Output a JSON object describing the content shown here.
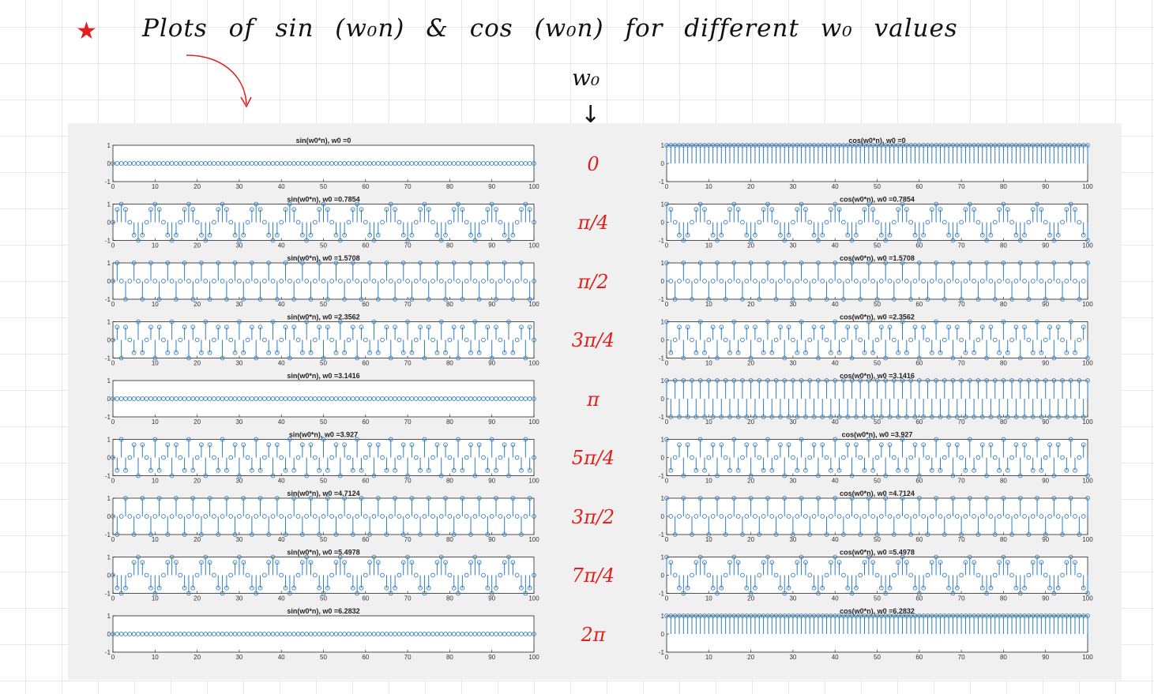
{
  "page": {
    "title_star": "★",
    "title": "Plots of sin (w₀n) & cos (w₀n) for different w₀ values",
    "w0_header": "w₀",
    "down_arrow": "↓"
  },
  "colors": {
    "stem": "#2f7bbf",
    "w0_labels": "#e0201c",
    "title_star": "#e02020",
    "figure_bg": "#f0f0f0"
  },
  "w0_labels": [
    "0",
    "π/4",
    "π/2",
    "3π/4",
    "π",
    "5π/4",
    "3π/2",
    "7π/4",
    "2π"
  ],
  "chart_data": [
    {
      "type": "stem",
      "function": "sin",
      "w0": 0,
      "title": "sin(w0*n),  w0 =0",
      "x_range": [
        0,
        100
      ],
      "ylim": [
        -1,
        1
      ],
      "xticks": [
        0,
        10,
        20,
        30,
        40,
        50,
        60,
        70,
        80,
        90,
        100
      ],
      "yticks": [
        -1,
        0,
        1
      ]
    },
    {
      "type": "stem",
      "function": "sin",
      "w0": 0.7854,
      "title": "sin(w0*n),  w0 =0.7854",
      "x_range": [
        0,
        100
      ],
      "ylim": [
        -1,
        1
      ],
      "xticks": [
        0,
        10,
        20,
        30,
        40,
        50,
        60,
        70,
        80,
        90,
        100
      ],
      "yticks": [
        -1,
        0,
        1
      ]
    },
    {
      "type": "stem",
      "function": "sin",
      "w0": 1.5708,
      "title": "sin(w0*n),  w0 =1.5708",
      "x_range": [
        0,
        100
      ],
      "ylim": [
        -1,
        1
      ],
      "xticks": [
        0,
        10,
        20,
        30,
        40,
        50,
        60,
        70,
        80,
        90,
        100
      ],
      "yticks": [
        -1,
        0,
        1
      ]
    },
    {
      "type": "stem",
      "function": "sin",
      "w0": 2.3562,
      "title": "sin(w0*n),  w0 =2.3562",
      "x_range": [
        0,
        100
      ],
      "ylim": [
        -1,
        1
      ],
      "xticks": [
        0,
        10,
        20,
        30,
        40,
        50,
        60,
        70,
        80,
        90,
        100
      ],
      "yticks": [
        -1,
        0,
        1
      ]
    },
    {
      "type": "stem",
      "function": "sin",
      "w0": 3.1416,
      "title": "sin(w0*n),  w0 =3.1416",
      "x_range": [
        0,
        100
      ],
      "ylim": [
        -1,
        1
      ],
      "xticks": [
        0,
        10,
        20,
        30,
        40,
        50,
        60,
        70,
        80,
        90,
        100
      ],
      "yticks": [
        -1,
        0,
        1
      ]
    },
    {
      "type": "stem",
      "function": "sin",
      "w0": 3.927,
      "title": "sin(w0*n),  w0 =3.927",
      "x_range": [
        0,
        100
      ],
      "ylim": [
        -1,
        1
      ],
      "xticks": [
        0,
        10,
        20,
        30,
        40,
        50,
        60,
        70,
        80,
        90,
        100
      ],
      "yticks": [
        -1,
        0,
        1
      ]
    },
    {
      "type": "stem",
      "function": "sin",
      "w0": 4.7124,
      "title": "sin(w0*n),  w0 =4.7124",
      "x_range": [
        0,
        100
      ],
      "ylim": [
        -1,
        1
      ],
      "xticks": [
        0,
        10,
        20,
        30,
        40,
        50,
        60,
        70,
        80,
        90,
        100
      ],
      "yticks": [
        -1,
        0,
        1
      ]
    },
    {
      "type": "stem",
      "function": "sin",
      "w0": 5.4978,
      "title": "sin(w0*n),  w0 =5.4978",
      "x_range": [
        0,
        100
      ],
      "ylim": [
        -1,
        1
      ],
      "xticks": [
        0,
        10,
        20,
        30,
        40,
        50,
        60,
        70,
        80,
        90,
        100
      ],
      "yticks": [
        -1,
        0,
        1
      ]
    },
    {
      "type": "stem",
      "function": "sin",
      "w0": 6.2832,
      "title": "sin(w0*n),  w0 =6.2832",
      "x_range": [
        0,
        100
      ],
      "ylim": [
        -1,
        1
      ],
      "xticks": [
        0,
        10,
        20,
        30,
        40,
        50,
        60,
        70,
        80,
        90,
        100
      ],
      "yticks": [
        -1,
        0,
        1
      ]
    },
    {
      "type": "stem",
      "function": "cos",
      "w0": 0,
      "title": "cos(w0*n),  w0 =0",
      "x_range": [
        0,
        100
      ],
      "ylim": [
        -1,
        1
      ],
      "xticks": [
        0,
        10,
        20,
        30,
        40,
        50,
        60,
        70,
        80,
        90,
        100
      ],
      "yticks": [
        -1,
        0,
        1
      ]
    },
    {
      "type": "stem",
      "function": "cos",
      "w0": 0.7854,
      "title": "cos(w0*n),  w0 =0.7854",
      "x_range": [
        0,
        100
      ],
      "ylim": [
        -1,
        1
      ],
      "xticks": [
        0,
        10,
        20,
        30,
        40,
        50,
        60,
        70,
        80,
        90,
        100
      ],
      "yticks": [
        -1,
        0,
        1
      ]
    },
    {
      "type": "stem",
      "function": "cos",
      "w0": 1.5708,
      "title": "cos(w0*n),  w0 =1.5708",
      "x_range": [
        0,
        100
      ],
      "ylim": [
        -1,
        1
      ],
      "xticks": [
        0,
        10,
        20,
        30,
        40,
        50,
        60,
        70,
        80,
        90,
        100
      ],
      "yticks": [
        -1,
        0,
        1
      ]
    },
    {
      "type": "stem",
      "function": "cos",
      "w0": 2.3562,
      "title": "cos(w0*n),  w0 =2.3562",
      "x_range": [
        0,
        100
      ],
      "ylim": [
        -1,
        1
      ],
      "xticks": [
        0,
        10,
        20,
        30,
        40,
        50,
        60,
        70,
        80,
        90,
        100
      ],
      "yticks": [
        -1,
        0,
        1
      ]
    },
    {
      "type": "stem",
      "function": "cos",
      "w0": 3.1416,
      "title": "cos(w0*n),  w0 =3.1416",
      "x_range": [
        0,
        100
      ],
      "ylim": [
        -1,
        1
      ],
      "xticks": [
        0,
        10,
        20,
        30,
        40,
        50,
        60,
        70,
        80,
        90,
        100
      ],
      "yticks": [
        -1,
        0,
        1
      ]
    },
    {
      "type": "stem",
      "function": "cos",
      "w0": 3.927,
      "title": "cos(w0*n),  w0 =3.927",
      "x_range": [
        0,
        100
      ],
      "ylim": [
        -1,
        1
      ],
      "xticks": [
        0,
        10,
        20,
        30,
        40,
        50,
        60,
        70,
        80,
        90,
        100
      ],
      "yticks": [
        -1,
        0,
        1
      ]
    },
    {
      "type": "stem",
      "function": "cos",
      "w0": 4.7124,
      "title": "cos(w0*n),  w0 =4.7124",
      "x_range": [
        0,
        100
      ],
      "ylim": [
        -1,
        1
      ],
      "xticks": [
        0,
        10,
        20,
        30,
        40,
        50,
        60,
        70,
        80,
        90,
        100
      ],
      "yticks": [
        -1,
        0,
        1
      ]
    },
    {
      "type": "stem",
      "function": "cos",
      "w0": 5.4978,
      "title": "cos(w0*n),  w0 =5.4978",
      "x_range": [
        0,
        100
      ],
      "ylim": [
        -1,
        1
      ],
      "xticks": [
        0,
        10,
        20,
        30,
        40,
        50,
        60,
        70,
        80,
        90,
        100
      ],
      "yticks": [
        -1,
        0,
        1
      ]
    },
    {
      "type": "stem",
      "function": "cos",
      "w0": 6.2832,
      "title": "cos(w0*n),  w0 =6.2832",
      "x_range": [
        0,
        100
      ],
      "ylim": [
        -1,
        1
      ],
      "xticks": [
        0,
        10,
        20,
        30,
        40,
        50,
        60,
        70,
        80,
        90,
        100
      ],
      "yticks": [
        -1,
        0,
        1
      ]
    }
  ]
}
